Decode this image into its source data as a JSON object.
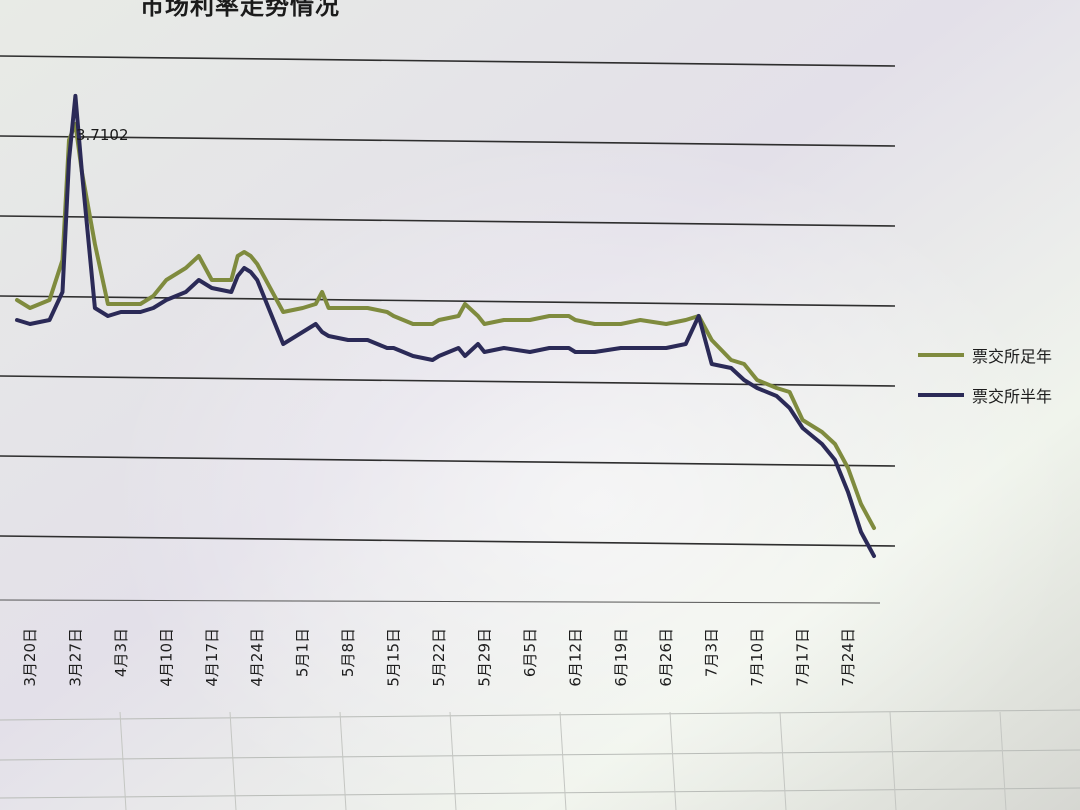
{
  "chart_data": {
    "type": "line",
    "title": "市场利率走势情况",
    "categories": [
      "3月20日",
      "3月27日",
      "4月3日",
      "4月10日",
      "4月17日",
      "4月24日",
      "5月1日",
      "5月8日",
      "5月15日",
      "5月22日",
      "5月29日",
      "6月5日",
      "6月12日",
      "6月19日",
      "6月26日",
      "7月3日",
      "7月10日",
      "7月17日",
      "7月24日"
    ],
    "ylim": [
      2.45,
      4.2
    ],
    "gridline_values": [
      2.6,
      2.8,
      3.0,
      3.2,
      3.4,
      3.6,
      3.8,
      4.0
    ],
    "grid": true,
    "legend_position": "right",
    "annotation": {
      "text": "3.7102",
      "x": "3月27日",
      "y": 3.7102
    },
    "series": [
      {
        "name": "票交所足年",
        "color": "#7f8b3e",
        "points": [
          [
            "3月18日",
            3.2
          ],
          [
            "3月20日",
            3.18
          ],
          [
            "3月23日",
            3.2
          ],
          [
            "3月25日",
            3.3
          ],
          [
            "3月26日",
            3.6
          ],
          [
            "3月27日",
            3.64
          ],
          [
            "3月28日",
            3.52
          ],
          [
            "3月30日",
            3.34
          ],
          [
            "4月1日",
            3.19
          ],
          [
            "4月3日",
            3.19
          ],
          [
            "4月6日",
            3.19
          ],
          [
            "4月8日",
            3.21
          ],
          [
            "4月10日",
            3.25
          ],
          [
            "4月13日",
            3.28
          ],
          [
            "4月15日",
            3.31
          ],
          [
            "4月17日",
            3.25
          ],
          [
            "4月20日",
            3.25
          ],
          [
            "4月21日",
            3.31
          ],
          [
            "4月22日",
            3.32
          ],
          [
            "4月23日",
            3.31
          ],
          [
            "4月24日",
            3.29
          ],
          [
            "4月27日",
            3.2
          ],
          [
            "4月28日",
            3.17
          ],
          [
            "5月1日",
            3.18
          ],
          [
            "5月3日",
            3.19
          ],
          [
            "5月4日",
            3.22
          ],
          [
            "5月5日",
            3.18
          ],
          [
            "5月8日",
            3.18
          ],
          [
            "5月11日",
            3.18
          ],
          [
            "5月14日",
            3.17
          ],
          [
            "5月15日",
            3.16
          ],
          [
            "5月18日",
            3.14
          ],
          [
            "5月21日",
            3.14
          ],
          [
            "5月22日",
            3.15
          ],
          [
            "5月25日",
            3.16
          ],
          [
            "5月26日",
            3.19
          ],
          [
            "5月28日",
            3.16
          ],
          [
            "5月29日",
            3.14
          ],
          [
            "6月1日",
            3.15
          ],
          [
            "6月5日",
            3.15
          ],
          [
            "6月8日",
            3.16
          ],
          [
            "6月11日",
            3.16
          ],
          [
            "6月12日",
            3.15
          ],
          [
            "6月15日",
            3.14
          ],
          [
            "6月19日",
            3.14
          ],
          [
            "6月22日",
            3.15
          ],
          [
            "6月26日",
            3.14
          ],
          [
            "6月29日",
            3.15
          ],
          [
            "7月1日",
            3.16
          ],
          [
            "7月3日",
            3.1
          ],
          [
            "7月6日",
            3.05
          ],
          [
            "7月8日",
            3.04
          ],
          [
            "7月10日",
            3.0
          ],
          [
            "7月13日",
            2.98
          ],
          [
            "7月15日",
            2.97
          ],
          [
            "7月17日",
            2.9
          ],
          [
            "7月20日",
            2.87
          ],
          [
            "7月22日",
            2.84
          ],
          [
            "7月24日",
            2.78
          ],
          [
            "7月26日",
            2.69
          ],
          [
            "7月28日",
            2.63
          ]
        ]
      },
      {
        "name": "票交所半年",
        "color": "#2b2a57",
        "points": [
          [
            "3月18日",
            3.15
          ],
          [
            "3月20日",
            3.14
          ],
          [
            "3月23日",
            3.15
          ],
          [
            "3月25日",
            3.22
          ],
          [
            "3月26日",
            3.55
          ],
          [
            "3月27日",
            3.7102
          ],
          [
            "3月28日",
            3.52
          ],
          [
            "3月30日",
            3.18
          ],
          [
            "4月1日",
            3.16
          ],
          [
            "4月3日",
            3.17
          ],
          [
            "4月6日",
            3.17
          ],
          [
            "4月8日",
            3.18
          ],
          [
            "4月10日",
            3.2
          ],
          [
            "4月13日",
            3.22
          ],
          [
            "4月15日",
            3.25
          ],
          [
            "4月17日",
            3.23
          ],
          [
            "4月20日",
            3.22
          ],
          [
            "4月21日",
            3.26
          ],
          [
            "4月22日",
            3.28
          ],
          [
            "4月23日",
            3.27
          ],
          [
            "4月24日",
            3.25
          ],
          [
            "4月27日",
            3.13
          ],
          [
            "4月28日",
            3.09
          ],
          [
            "5月1日",
            3.12
          ],
          [
            "5月3日",
            3.14
          ],
          [
            "5月4日",
            3.12
          ],
          [
            "5月5日",
            3.11
          ],
          [
            "5月8日",
            3.1
          ],
          [
            "5月11日",
            3.1
          ],
          [
            "5月14日",
            3.08
          ],
          [
            "5月15日",
            3.08
          ],
          [
            "5月18日",
            3.06
          ],
          [
            "5月21日",
            3.05
          ],
          [
            "5月22日",
            3.06
          ],
          [
            "5月25日",
            3.08
          ],
          [
            "5月26日",
            3.06
          ],
          [
            "5月28日",
            3.09
          ],
          [
            "5月29日",
            3.07
          ],
          [
            "6月1日",
            3.08
          ],
          [
            "6月5日",
            3.07
          ],
          [
            "6月8日",
            3.08
          ],
          [
            "6月11日",
            3.08
          ],
          [
            "6月12日",
            3.07
          ],
          [
            "6月15日",
            3.07
          ],
          [
            "6月19日",
            3.08
          ],
          [
            "6月22日",
            3.08
          ],
          [
            "6月26日",
            3.08
          ],
          [
            "6月29日",
            3.09
          ],
          [
            "7月1日",
            3.16
          ],
          [
            "7月3日",
            3.04
          ],
          [
            "7月6日",
            3.03
          ],
          [
            "7月8日",
            3.0
          ],
          [
            "7月10日",
            2.98
          ],
          [
            "7月13日",
            2.96
          ],
          [
            "7月15日",
            2.93
          ],
          [
            "7月17日",
            2.88
          ],
          [
            "7月20日",
            2.84
          ],
          [
            "7月22日",
            2.8
          ],
          [
            "7月24日",
            2.72
          ],
          [
            "7月26日",
            2.62
          ],
          [
            "7月28日",
            2.56
          ]
        ]
      }
    ]
  }
}
